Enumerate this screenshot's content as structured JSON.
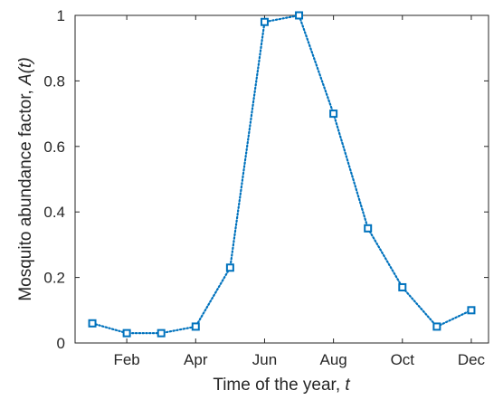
{
  "chart_data": {
    "type": "line",
    "xlabel_text": "Time of the year, ",
    "xlabel_var": "t",
    "ylabel_text": "Mosquito abundance factor, ",
    "ylabel_var": "A(t)",
    "xlim": [
      0.5,
      12.5
    ],
    "ylim": [
      0,
      1
    ],
    "x_ticks": [
      {
        "x": 2,
        "label": "Feb"
      },
      {
        "x": 4,
        "label": "Apr"
      },
      {
        "x": 6,
        "label": "Jun"
      },
      {
        "x": 8,
        "label": "Aug"
      },
      {
        "x": 10,
        "label": "Oct"
      },
      {
        "x": 12,
        "label": "Dec"
      }
    ],
    "y_ticks": [
      {
        "y": 0,
        "label": "0"
      },
      {
        "y": 0.2,
        "label": "0.2"
      },
      {
        "y": 0.4,
        "label": "0.4"
      },
      {
        "y": 0.6,
        "label": "0.6"
      },
      {
        "y": 0.8,
        "label": "0.8"
      },
      {
        "y": 1,
        "label": "1"
      }
    ],
    "series": [
      {
        "x": [
          1,
          2,
          3,
          4,
          5,
          6,
          7,
          8,
          9,
          10,
          11,
          12
        ],
        "values": [
          0.06,
          0.03,
          0.03,
          0.05,
          0.23,
          0.98,
          1.0,
          0.7,
          0.35,
          0.17,
          0.05,
          0.1
        ]
      }
    ],
    "line_style": "dotted",
    "marker": "square",
    "color": "#0072BD",
    "grid": false
  }
}
